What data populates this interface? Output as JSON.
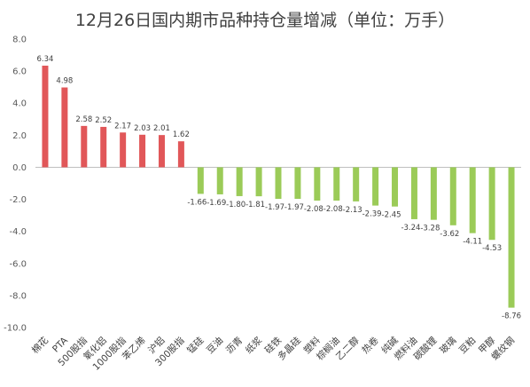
{
  "chart_data": {
    "type": "bar",
    "title": "12月26日国内期市品种持仓量增减（单位：万手）",
    "xlabel": "",
    "ylabel": "",
    "ylim": [
      -10,
      8
    ],
    "yticks": [
      8.0,
      6.0,
      4.0,
      2.0,
      0.0,
      -2.0,
      -4.0,
      -6.0,
      -8.0,
      -10.0
    ],
    "grid": false,
    "legend": "none",
    "colors": {
      "positive": "#E15759",
      "negative": "#9BCB58"
    },
    "categories": [
      "棉花",
      "PTA",
      "500股指",
      "氧化铝",
      "1000股指",
      "苯乙烯",
      "沪铝",
      "300股指",
      "锰硅",
      "豆油",
      "沥青",
      "纸浆",
      "硅铁",
      "多晶硅",
      "塑料",
      "棕榈油",
      "乙二醇",
      "热卷",
      "纯碱",
      "燃料油",
      "碳酸锂",
      "玻璃",
      "豆粕",
      "甲醇",
      "螺纹钢"
    ],
    "values": [
      6.34,
      4.98,
      2.58,
      2.52,
      2.17,
      2.03,
      2.01,
      1.62,
      -1.66,
      -1.69,
      -1.8,
      -1.81,
      -1.97,
      -1.97,
      -2.08,
      -2.08,
      -2.13,
      -2.39,
      -2.45,
      -3.24,
      -3.28,
      -3.62,
      -4.11,
      -4.53,
      -8.76
    ],
    "data_labels": [
      "6.34",
      "4.98",
      "2.58",
      "2.52",
      "2.17",
      "2.03",
      "2.01",
      "1.62",
      "-1.66",
      "-1.69",
      "-1.80",
      "-1.81",
      "-1.97",
      "-1.97",
      "-2.08",
      "-2.08",
      "-2.13",
      "-2.39",
      "-2.45",
      "-3.24",
      "-3.28",
      "-3.62",
      "-4.11",
      "-4.53",
      "-8.76"
    ]
  }
}
